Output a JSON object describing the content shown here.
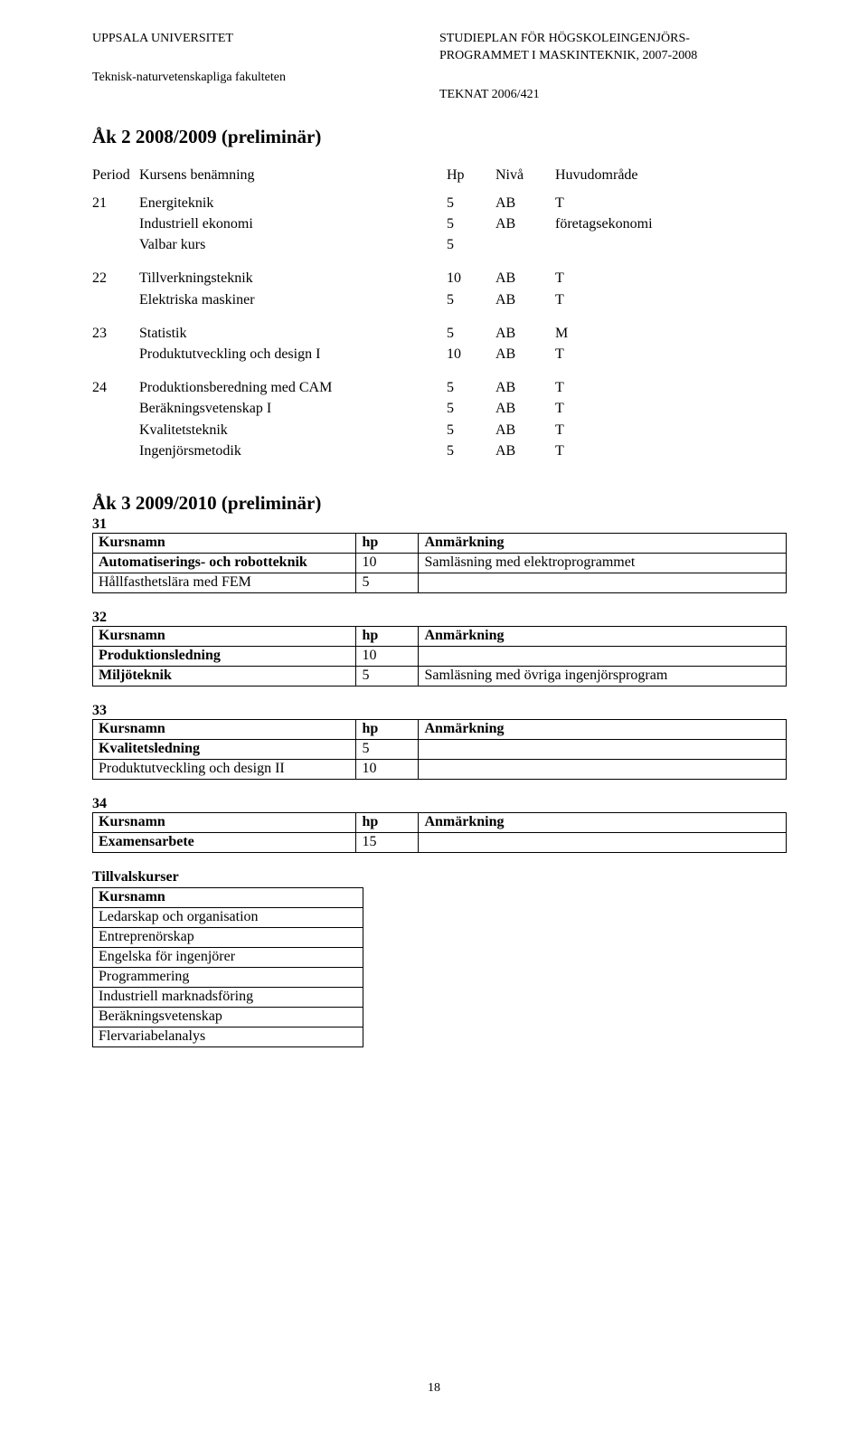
{
  "header": {
    "university": "UPPSALA UNIVERSITET",
    "faculty": "Teknisk-naturvetenskapliga fakulteten",
    "doc_title_line1": "STUDIEPLAN FÖR HÖGSKOLEINGENJÖRS-",
    "doc_title_line2": "PROGRAMMET I MASKINTEKNIK, 2007-2008",
    "doc_code": "TEKNAT 2006/421"
  },
  "year2": {
    "title": "Åk 2 2008/2009 (preliminär)",
    "header": {
      "period": "Period",
      "name": "Kursens benämning",
      "hp": "Hp",
      "level": "Nivå",
      "area": "Huvudområde"
    },
    "groups": [
      {
        "period": "21",
        "rows": [
          {
            "name": "Energiteknik",
            "hp": "5",
            "level": "AB",
            "area": "T"
          },
          {
            "name": "Industriell ekonomi",
            "hp": "5",
            "level": "AB",
            "area": "företagsekonomi"
          },
          {
            "name": "Valbar kurs",
            "hp": "5",
            "level": "",
            "area": ""
          }
        ]
      },
      {
        "period": "22",
        "rows": [
          {
            "name": "Tillverkningsteknik",
            "hp": "10",
            "level": "AB",
            "area": "T"
          },
          {
            "name": "Elektriska maskiner",
            "hp": "5",
            "level": "AB",
            "area": "T"
          }
        ]
      },
      {
        "period": "23",
        "rows": [
          {
            "name": "Statistik",
            "hp": "5",
            "level": "AB",
            "area": "M"
          },
          {
            "name": "Produktutveckling och design I",
            "hp": "10",
            "level": "AB",
            "area": "T"
          }
        ]
      },
      {
        "period": "24",
        "rows": [
          {
            "name": "Produktionsberedning med CAM",
            "hp": "5",
            "level": "AB",
            "area": "T"
          },
          {
            "name": "Beräkningsvetenskap I",
            "hp": "5",
            "level": "AB",
            "area": "T"
          },
          {
            "name": "Kvalitetsteknik",
            "hp": "5",
            "level": "AB",
            "area": "T"
          },
          {
            "name": "Ingenjörsmetodik",
            "hp": "5",
            "level": "AB",
            "area": "T"
          }
        ]
      }
    ]
  },
  "year3": {
    "title": "Åk 3 2009/2010 (preliminär)",
    "table_header": {
      "name": "Kursnamn",
      "hp": "hp",
      "note": "Anmärkning"
    },
    "periods": [
      {
        "num": "31",
        "rows": [
          {
            "name": "Automatiserings- och robotteknik",
            "name_bold": true,
            "hp": "10",
            "note": "Samläsning med elektroprogrammet"
          },
          {
            "name": "Hållfasthetslära med FEM",
            "name_bold": false,
            "hp": "5",
            "note": ""
          }
        ]
      },
      {
        "num": "32",
        "rows": [
          {
            "name": "Produktionsledning",
            "name_bold": true,
            "hp": "10",
            "note": ""
          },
          {
            "name": "Miljöteknik",
            "name_bold": true,
            "hp": "5",
            "note": "Samläsning med övriga ingenjörsprogram"
          }
        ]
      },
      {
        "num": "33",
        "rows": [
          {
            "name": "Kvalitetsledning",
            "name_bold": true,
            "hp": "5",
            "note": ""
          },
          {
            "name": "Produktutveckling och design II",
            "name_bold": false,
            "hp": "10",
            "note": ""
          }
        ]
      },
      {
        "num": "34",
        "rows": [
          {
            "name": "Examensarbete",
            "name_bold": true,
            "hp": "15",
            "note": ""
          }
        ]
      }
    ],
    "electives": {
      "title": "Tillvalskurser",
      "header": "Kursnamn",
      "items": [
        "Ledarskap och organisation",
        "Entreprenörskap",
        "Engelska för ingenjörer",
        "Programmering",
        "Industriell marknadsföring",
        "Beräkningsvetenskap",
        "Flervariabelanalys"
      ]
    }
  },
  "page_number": "18"
}
